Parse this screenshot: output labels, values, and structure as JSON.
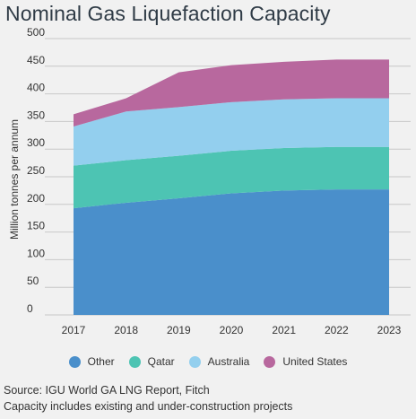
{
  "title": "Nominal Gas Liquefaction Capacity",
  "chart_data": {
    "type": "area",
    "stacked": true,
    "x": [
      "2017",
      "2018",
      "2019",
      "2020",
      "2021",
      "2022",
      "2023"
    ],
    "ylabel": "Million tonnes per annum",
    "ylim": [
      0,
      500
    ],
    "yticks": [
      0,
      50,
      100,
      150,
      200,
      250,
      300,
      350,
      400,
      450,
      500
    ],
    "grid": true,
    "legend_position": "bottom",
    "series": [
      {
        "name": "Other",
        "color": "#4a8fcb",
        "values": [
          193,
          203,
          211,
          220,
          225,
          227,
          227
        ]
      },
      {
        "name": "Qatar",
        "color": "#4dc4b3",
        "values": [
          77,
          77,
          77,
          77,
          77,
          77,
          77
        ]
      },
      {
        "name": "Australia",
        "color": "#93cfee",
        "values": [
          71,
          88,
          88,
          88,
          88,
          88,
          88
        ]
      },
      {
        "name": "United States",
        "color": "#b8689e",
        "values": [
          22,
          24,
          63,
          67,
          68,
          70,
          70
        ]
      }
    ]
  },
  "source": {
    "line1": "Source: IGU World GA LNG Report, Fitch",
    "line2": "Capacity includes existing and under-construction projects"
  }
}
